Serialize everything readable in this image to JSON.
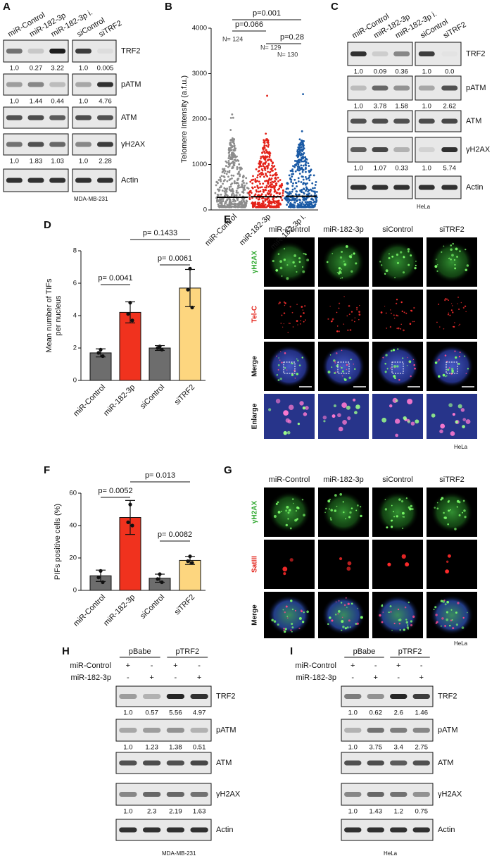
{
  "blots": {
    "A": {
      "panel": "A",
      "lanes": [
        "miR-Control",
        "miR-182-3p",
        "miR-182-3p i.",
        "siControl",
        "siTRF2"
      ],
      "rows": [
        {
          "protein": "TRF2",
          "quant": [
            "1.0",
            "0.27",
            "3.22",
            "1.0",
            "0.005"
          ]
        },
        {
          "protein": "pATM",
          "quant": [
            "1.0",
            "1.44",
            "0.44",
            "1.0",
            "4.76"
          ]
        },
        {
          "protein": "ATM"
        },
        {
          "protein": "γH2AX",
          "quant": [
            "1.0",
            "1.83",
            "1.03",
            "1.0",
            "2.28"
          ]
        },
        {
          "protein": "Actin"
        }
      ],
      "cell_line": "MDA-MB-231"
    },
    "C": {
      "panel": "C",
      "lanes": [
        "miR-Control",
        "miR-182-3p",
        "miR-182-3p i.",
        "siControl",
        "siTRF2"
      ],
      "rows": [
        {
          "protein": "TRF2",
          "quant": [
            "1.0",
            "0.09",
            "0.36",
            "1.0",
            "0.0"
          ]
        },
        {
          "protein": "pATM",
          "quant": [
            "1.0",
            "3.78",
            "1.58",
            "1.0",
            "2.62"
          ]
        },
        {
          "protein": "ATM"
        },
        {
          "protein": "γH2AX",
          "quant": [
            "1.0",
            "1.07",
            "0.33",
            "1.0",
            "5.74"
          ]
        },
        {
          "protein": "Actin"
        }
      ],
      "cell_line": "HeLa"
    },
    "H": {
      "panel": "H",
      "groups": [
        "pBabe",
        "pTRF2"
      ],
      "conditions": [
        {
          "name": "miR-Control",
          "signs": [
            "+",
            "-",
            "+",
            "-"
          ]
        },
        {
          "name": "miR-182-3p",
          "signs": [
            "-",
            "+",
            "-",
            "+"
          ]
        }
      ],
      "rows": [
        {
          "protein": "TRF2",
          "quant": [
            "1.0",
            "0.57",
            "5.56",
            "4.97"
          ]
        },
        {
          "protein": "pATM",
          "quant": [
            "1.0",
            "1.23",
            "1.38",
            "0.51"
          ]
        },
        {
          "protein": "ATM"
        },
        {
          "protein": "γH2AX",
          "quant": [
            "1.0",
            "2.3",
            "2.19",
            "1.63"
          ]
        },
        {
          "protein": "Actin"
        }
      ],
      "cell_line": "MDA-MB-231"
    },
    "I": {
      "panel": "I",
      "groups": [
        "pBabe",
        "pTRF2"
      ],
      "conditions": [
        {
          "name": "miR-Control",
          "signs": [
            "+",
            "-",
            "+",
            "-"
          ]
        },
        {
          "name": "miR-182-3p",
          "signs": [
            "-",
            "+",
            "-",
            "+"
          ]
        }
      ],
      "rows": [
        {
          "protein": "TRF2",
          "quant": [
            "1.0",
            "0.62",
            "2.6",
            "1.46"
          ]
        },
        {
          "protein": "pATM",
          "quant": [
            "1.0",
            "3.75",
            "3.4",
            "2.75"
          ]
        },
        {
          "protein": "ATM"
        },
        {
          "protein": "γH2AX",
          "quant": [
            "1.0",
            "1.43",
            "1.2",
            "0.75"
          ]
        },
        {
          "protein": "Actin"
        }
      ],
      "cell_line": "HeLa"
    }
  },
  "images": {
    "E": {
      "panel": "E",
      "columns": [
        "miR-Control",
        "miR-182-3p",
        "siControl",
        "siTRF2"
      ],
      "rows": [
        "γH2AX",
        "Tel-C",
        "Merge",
        "Enlarge"
      ],
      "cell_line": "HeLa"
    },
    "G": {
      "panel": "G",
      "columns": [
        "miR-Control",
        "miR-182-3p",
        "siControl",
        "siTRF2"
      ],
      "rows": [
        "γH2AX",
        "SatIII",
        "Merge"
      ],
      "cell_line": "HeLa"
    }
  },
  "chart_data": [
    {
      "type": "dotplot",
      "panel": "B",
      "ylabel": "Telomere Intensity (a.f.u.)",
      "categories": [
        "miR-Control",
        "miR-182-3p",
        "miR-182-3p i."
      ],
      "values": [
        280,
        290,
        300
      ],
      "colors": [
        "#8c8c8c",
        "#e32219",
        "#1a5aa5"
      ],
      "ylim": [
        0,
        4000
      ],
      "yticks": [
        0,
        1000,
        2000,
        3000,
        4000
      ],
      "n_labels": [
        "N= 124",
        "N= 129",
        "N= 130"
      ],
      "p_values": [
        "p=0.001",
        "p=0.066",
        "p=0.28"
      ]
    },
    {
      "type": "bar",
      "panel": "D",
      "ylabel": [
        "Mean number of TIFs",
        "per nucleus"
      ],
      "categories": [
        "miR-Control",
        "miR-182-3p",
        "siControl",
        "siTRF2"
      ],
      "values": [
        1.7,
        4.2,
        2.0,
        5.7
      ],
      "errors": [
        0.25,
        0.65,
        0.15,
        1.15
      ],
      "points": [
        [
          1.9,
          1.7,
          1.5
        ],
        [
          4.8,
          4.1,
          3.7
        ],
        [
          2.1,
          2.0,
          1.9
        ],
        [
          6.9,
          5.6,
          4.5
        ]
      ],
      "colors": [
        "#6d6d6d",
        "#f0321e",
        "#6d6d6d",
        "#fdd67f"
      ],
      "ylim": [
        0,
        8
      ],
      "yticks": [
        0,
        2,
        4,
        6,
        8
      ],
      "p_values": [
        "p= 0.0041",
        "p= 0.1433",
        "p= 0.0061"
      ]
    },
    {
      "type": "bar",
      "panel": "F",
      "ylabel": "PIFs positive cells (%)",
      "categories": [
        "miR-Control",
        "miR-182-3p",
        "siControl",
        "siTRF2"
      ],
      "values": [
        9,
        45,
        7.5,
        18.5
      ],
      "errors": [
        3.5,
        10.5,
        2.5,
        2.5
      ],
      "points": [
        [
          12,
          8,
          5
        ],
        [
          53,
          42,
          40
        ],
        [
          10,
          7,
          5
        ],
        [
          21,
          18,
          17
        ]
      ],
      "colors": [
        "#6d6d6d",
        "#f0321e",
        "#6d6d6d",
        "#fdd67f"
      ],
      "ylim": [
        0,
        60
      ],
      "yticks": [
        0,
        20,
        40,
        60
      ],
      "p_values": [
        "p= 0.0052",
        "p= 0.013",
        "p= 0.0082"
      ]
    }
  ]
}
